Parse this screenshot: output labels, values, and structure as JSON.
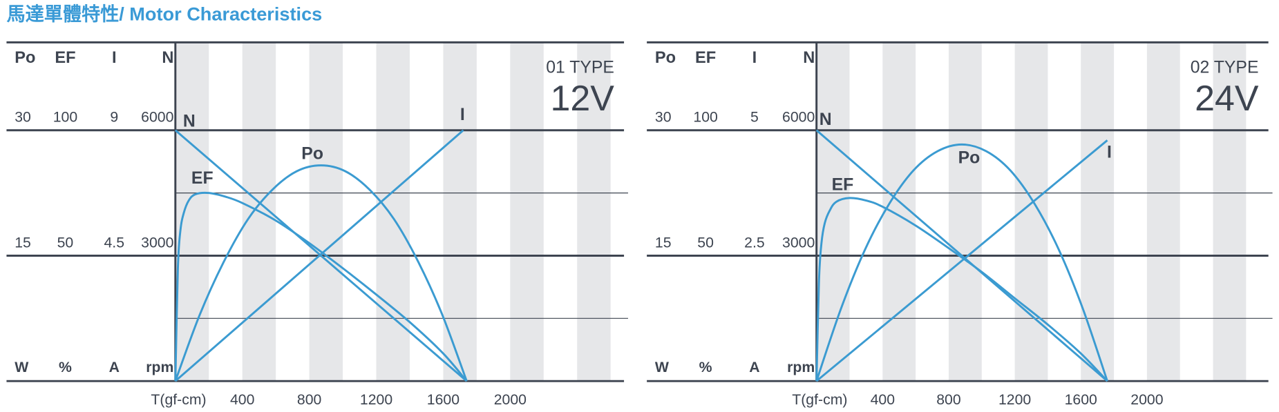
{
  "title": "馬達單體特性/ Motor Characteristics",
  "chart_data": [
    {
      "type": "line",
      "type_label": "01 TYPE",
      "voltage": "12V",
      "axes": [
        {
          "name": "Po",
          "unit": "W",
          "ylim": [
            0,
            30
          ],
          "yticks": [
            15,
            30
          ]
        },
        {
          "name": "EF",
          "unit": "%",
          "ylim": [
            0,
            100
          ],
          "yticks": [
            50,
            100
          ]
        },
        {
          "name": "I",
          "unit": "A",
          "ylim": [
            0,
            9
          ],
          "yticks": [
            4.5,
            9
          ]
        },
        {
          "name": "N",
          "unit": "rpm",
          "ylim": [
            0,
            6000
          ],
          "yticks": [
            3000,
            6000
          ],
          "minor_yticks": [
            1500,
            4500
          ]
        }
      ],
      "xlim": [
        0,
        2680
      ],
      "xticks": [
        {
          "value": 0,
          "label": "T(gf-cm)"
        },
        400,
        800,
        1200,
        1600,
        2000
      ],
      "series": [
        {
          "name": "N",
          "axis": 3,
          "color": "#3b9bd1",
          "x": [
            0,
            1740
          ],
          "values": [
            6000,
            0
          ]
        },
        {
          "name": "EF",
          "axis": 1,
          "color": "#3b9bd1",
          "x": [
            0,
            15,
            30,
            50,
            80,
            120,
            200,
            300,
            400,
            600,
            800,
            1000,
            1200,
            1400,
            1600,
            1740
          ],
          "values": [
            0,
            45,
            60,
            67,
            72,
            74.5,
            75,
            73.5,
            71,
            64,
            55,
            45,
            34.5,
            23.5,
            11,
            0
          ]
        },
        {
          "name": "Po",
          "axis": 0,
          "color": "#3b9bd1",
          "x": [
            0,
            145,
            290,
            435,
            580,
            725,
            870,
            1015,
            1160,
            1305,
            1450,
            1595,
            1740
          ],
          "values": [
            0,
            7.9,
            14.3,
            19.4,
            22.9,
            25.1,
            25.8,
            25.1,
            22.9,
            19.4,
            14.3,
            7.9,
            0
          ]
        },
        {
          "name": "I",
          "axis": 2,
          "color": "#3b9bd1",
          "x": [
            0,
            1720
          ],
          "values": [
            0,
            9
          ]
        }
      ]
    },
    {
      "type": "line",
      "type_label": "02 TYPE",
      "voltage": "24V",
      "axes": [
        {
          "name": "Po",
          "unit": "W",
          "ylim": [
            0,
            30
          ],
          "yticks": [
            15,
            30
          ]
        },
        {
          "name": "EF",
          "unit": "%",
          "ylim": [
            0,
            100
          ],
          "yticks": [
            50,
            100
          ]
        },
        {
          "name": "I",
          "unit": "A",
          "ylim": [
            0,
            5
          ],
          "yticks": [
            2.5,
            5
          ]
        },
        {
          "name": "N",
          "unit": "rpm",
          "ylim": [
            0,
            6000
          ],
          "yticks": [
            3000,
            6000
          ],
          "minor_yticks": [
            1500,
            4500
          ]
        }
      ],
      "xlim": [
        0,
        2735
      ],
      "xticks": [
        {
          "value": 0,
          "label": "T(gf-cm)"
        },
        400,
        800,
        1200,
        1600,
        2000
      ],
      "series": [
        {
          "name": "N",
          "axis": 3,
          "color": "#3b9bd1",
          "x": [
            0,
            1760
          ],
          "values": [
            6000,
            0
          ]
        },
        {
          "name": "EF",
          "axis": 1,
          "color": "#3b9bd1",
          "x": [
            0,
            15,
            30,
            50,
            80,
            120,
            200,
            300,
            400,
            600,
            800,
            1000,
            1200,
            1400,
            1600,
            1760
          ],
          "values": [
            0,
            40,
            55,
            63,
            68,
            71.5,
            73,
            72,
            69.5,
            62,
            53,
            43.5,
            33,
            22.5,
            11,
            0
          ]
        },
        {
          "name": "Po",
          "axis": 0,
          "color": "#3b9bd1",
          "x": [
            0,
            147,
            293,
            440,
            587,
            733,
            880,
            1027,
            1173,
            1320,
            1467,
            1613,
            1760
          ],
          "values": [
            0,
            8.6,
            15.7,
            21.2,
            25.2,
            27.5,
            28.3,
            27.5,
            25.2,
            21.2,
            15.7,
            8.6,
            0
          ]
        },
        {
          "name": "I",
          "axis": 2,
          "color": "#3b9bd1",
          "x": [
            0,
            1760
          ],
          "values": [
            0,
            4.8
          ]
        }
      ]
    }
  ]
}
